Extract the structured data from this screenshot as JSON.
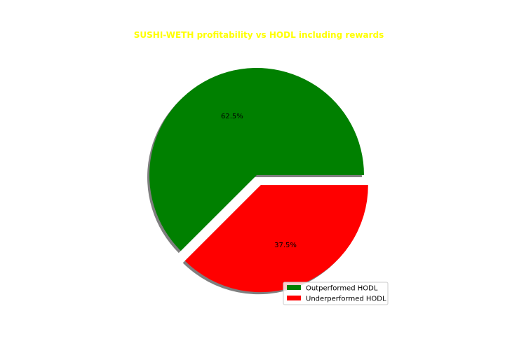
{
  "chart_data": {
    "type": "pie",
    "title": "SUSHI-WETH profitability vs HODL including rewards",
    "title_color": "#ffff00",
    "slices": [
      {
        "label": "Outperformed HODL",
        "value": 62.5,
        "pct_label": "62.5%",
        "color": "#008000",
        "exploded": false
      },
      {
        "label": "Underperformed HODL",
        "value": 37.5,
        "pct_label": "37.5%",
        "color": "#ff0000",
        "exploded": true
      }
    ],
    "shadow": true,
    "legend_position": "lower-right"
  }
}
